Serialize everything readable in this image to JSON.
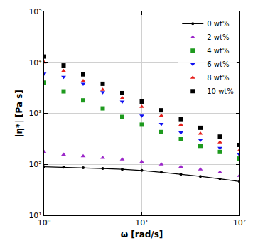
{
  "chart_data": {
    "type": "scatter",
    "x_label": "ω [rad/s]",
    "y_label": "|η*| [Pa s]",
    "log": true,
    "grid": true,
    "legend": "upper right",
    "x": [
      1,
      1.585,
      2.512,
      3.981,
      6.31,
      10,
      15.85,
      25.12,
      39.81,
      63.1,
      100
    ],
    "xlim": [
      1,
      100
    ],
    "xticks": [
      {
        "value": 1,
        "label": "10⁰"
      },
      {
        "value": 10,
        "label": "10¹"
      },
      {
        "value": 100,
        "label": "10²"
      }
    ],
    "ylim": [
      10,
      100000
    ],
    "yticks": [
      {
        "value": 10,
        "label": "10¹"
      },
      {
        "value": 100,
        "label": "10²"
      },
      {
        "value": 1000,
        "label": "10³"
      },
      {
        "value": 10000,
        "label": "10⁴"
      },
      {
        "value": 100000,
        "label": "10⁵"
      }
    ],
    "series": [
      {
        "name": "0 wt%",
        "type": "line",
        "marker": "circle",
        "color": "#000000",
        "values": [
          90,
          88,
          86,
          83,
          80,
          76,
          70,
          64,
          58,
          52,
          46
        ]
      },
      {
        "name": "2 wt%",
        "marker": "triangle-up",
        "color": "#9b27c9",
        "values": [
          175,
          155,
          145,
          135,
          125,
          112,
          100,
          90,
          80,
          70,
          60
        ]
      },
      {
        "name": "4 wt%",
        "marker": "square",
        "color": "#1e9a1e",
        "values": [
          4000,
          2700,
          1800,
          1250,
          850,
          600,
          430,
          310,
          230,
          175,
          130
        ]
      },
      {
        "name": "6 wt%",
        "marker": "triangle-down",
        "color": "#1010f0",
        "values": [
          6000,
          5200,
          3800,
          2600,
          1700,
          900,
          620,
          420,
          300,
          210,
          155
        ]
      },
      {
        "name": "8 wt%",
        "marker": "triangle-up",
        "color": "#e5201c",
        "values": [
          10000,
          6800,
          4300,
          2900,
          2000,
          1350,
          900,
          600,
          400,
          270,
          190
        ]
      },
      {
        "name": "10 wt%",
        "marker": "square",
        "color": "#000000",
        "values": [
          13000,
          8700,
          5800,
          3800,
          2500,
          1700,
          1150,
          770,
          520,
          350,
          240
        ]
      }
    ]
  }
}
